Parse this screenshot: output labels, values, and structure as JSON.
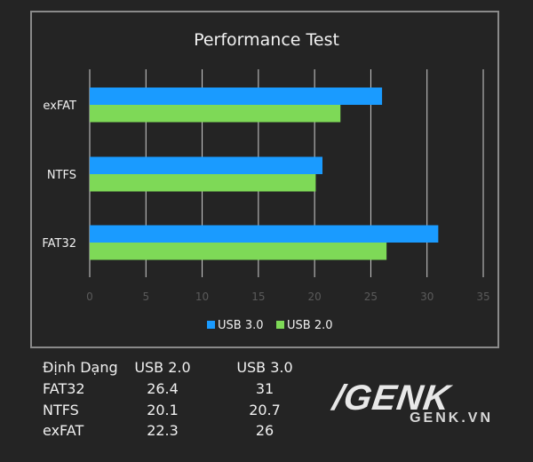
{
  "chart_data": {
    "type": "bar",
    "orientation": "horizontal",
    "title": "Performance Test",
    "categories": [
      "exFAT",
      "NTFS",
      "FAT32"
    ],
    "series": [
      {
        "name": "USB 3.0",
        "color": "#1a9bff",
        "values": [
          26,
          20.7,
          31
        ]
      },
      {
        "name": "USB 2.0",
        "color": "#7ed957",
        "values": [
          22.3,
          20.1,
          26.4
        ]
      }
    ],
    "xlim": [
      0,
      35
    ],
    "xticks": [
      "0",
      "5",
      "10",
      "15",
      "20",
      "25",
      "30",
      "35"
    ],
    "grid": true,
    "legend": "bottom"
  },
  "table": {
    "headers": [
      "Định Dạng",
      "USB 2.0",
      "USB 3.0"
    ],
    "rows": [
      [
        "FAT32",
        "26.4",
        "31"
      ],
      [
        "NTFS",
        "20.1",
        "20.7"
      ],
      [
        "exFAT",
        "22.3",
        "26"
      ]
    ]
  },
  "logo": {
    "main": "/GENK",
    "sub": "GENK.VN"
  }
}
